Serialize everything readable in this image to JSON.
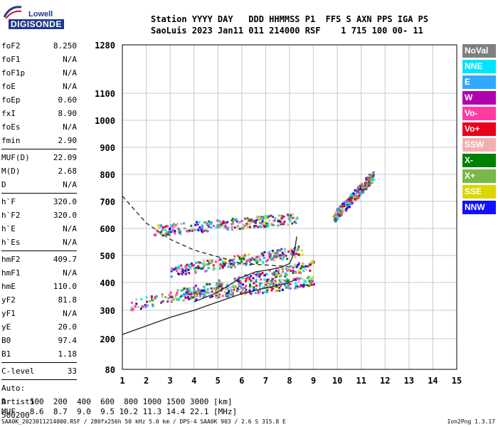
{
  "logo": {
    "line1": "Lowell",
    "line2": "DIGISONDE"
  },
  "header": {
    "line1": "Station YYYY DAY   DDD HHMMSS P1  FFS S AXN PPS IGA PS",
    "line2": "SaoLuis 2023 Jan11 011 214000 RSF    1 715 100 00- 11"
  },
  "params": {
    "group1": [
      {
        "label": "foF2",
        "value": "8.250"
      },
      {
        "label": "foF1",
        "value": "N/A"
      },
      {
        "label": "foF1p",
        "value": "N/A"
      },
      {
        "label": "foE",
        "value": "N/A"
      },
      {
        "label": "foEp",
        "value": "0.60"
      },
      {
        "label": "fxI",
        "value": "8.90"
      },
      {
        "label": "foEs",
        "value": "N/A"
      },
      {
        "label": "fmin",
        "value": "2.90"
      }
    ],
    "group2": [
      {
        "label": "MUF(D)",
        "value": "22.09"
      },
      {
        "label": "M(D)",
        "value": "2.68"
      },
      {
        "label": "D",
        "value": "N/A"
      }
    ],
    "group3": [
      {
        "label": "h`F",
        "value": "320.0"
      },
      {
        "label": "h`F2",
        "value": "320.0"
      },
      {
        "label": "h`E",
        "value": "N/A"
      },
      {
        "label": "h`Es",
        "value": "N/A"
      }
    ],
    "group4": [
      {
        "label": "hmF2",
        "value": "409.7"
      },
      {
        "label": "hmF1",
        "value": "N/A"
      },
      {
        "label": "hmE",
        "value": "110.0"
      },
      {
        "label": "yF2",
        "value": "81.8"
      },
      {
        "label": "yF1",
        "value": "N/A"
      },
      {
        "label": "yE",
        "value": "20.0"
      },
      {
        "label": "B0",
        "value": "97.4"
      },
      {
        "label": "B1",
        "value": "1.18"
      }
    ],
    "group5": [
      {
        "label": "C-level",
        "value": "33"
      }
    ],
    "auto": [
      "Auto:",
      "Artist5",
      "500200"
    ]
  },
  "legend": [
    {
      "label": "NoVal",
      "bg": "#808080",
      "fg": "#ffffff"
    },
    {
      "label": "NNE",
      "bg": "#00e5ff",
      "fg": "#ffffff"
    },
    {
      "label": "E",
      "bg": "#33a8ff",
      "fg": "#ffffff"
    },
    {
      "label": "W",
      "bg": "#b000b0",
      "fg": "#ffffff"
    },
    {
      "label": "Vo-",
      "bg": "#ff3ba0",
      "fg": "#ffffff"
    },
    {
      "label": "Vo+",
      "bg": "#e8001c",
      "fg": "#ffffff"
    },
    {
      "label": "SSW",
      "bg": "#f4b0b0",
      "fg": "#ffffff"
    },
    {
      "label": "X-",
      "bg": "#008000",
      "fg": "#ffffff"
    },
    {
      "label": "X+",
      "bg": "#78b848",
      "fg": "#ffffff"
    },
    {
      "label": "SSE",
      "bg": "#d8d800",
      "fg": "#ffffff"
    },
    {
      "label": "NNW",
      "bg": "#1010ff",
      "fg": "#ffffff"
    }
  ],
  "footer": {
    "d_row": "D     100  200  400  600  800 1000 1500 3000 [km]",
    "muf_row": "MUF   8.6  8.7  9.0  9.5 10.2 11.3 14.4 22.1 [MHz]",
    "file_line": "SAA0K_2023011214000.RSF / 280fx256h 50 kHz 5.0 km / DPS-4 SAA0K 903 / 2.6 S 315.8 E",
    "version": "Ion2Png 1.3.17"
  },
  "chart_data": {
    "type": "scatter",
    "title": "",
    "xlabel": "",
    "ylabel": "",
    "xlim": [
      1,
      15
    ],
    "ylim": [
      80,
      1280
    ],
    "x_ticks": [
      1,
      2,
      3,
      4,
      5,
      6,
      7,
      8,
      9,
      10,
      11,
      12,
      13,
      14,
      15
    ],
    "y_ticks": [
      80,
      200,
      300,
      400,
      500,
      600,
      700,
      800,
      900,
      1000,
      1100,
      1280
    ],
    "y_scale": "reciprocal-like (virtual height ionogram scale)",
    "grid": true,
    "colors": [
      "#00e5ff",
      "#33a8ff",
      "#b000b0",
      "#ff3ba0",
      "#e8001c",
      "#f4b0b0",
      "#008000",
      "#78b848",
      "#d8d800",
      "#1010ff",
      "#808080"
    ],
    "echo_traces": [
      {
        "name": "o-F trace 1",
        "x_range": [
          1.3,
          9.0
        ],
        "y_start": 320,
        "y_end": 470
      },
      {
        "name": "o-F trace 2",
        "x_range": [
          3.0,
          8.5
        ],
        "y_start": 445,
        "y_end": 520
      },
      {
        "name": "o-F second hop",
        "x_range": [
          2.3,
          8.3
        ],
        "y_start": 595,
        "y_end": 640
      },
      {
        "name": "x-F trace",
        "x_range": [
          3.5,
          9.0
        ],
        "y_start": 350,
        "y_end": 410
      },
      {
        "name": "oblique cluster",
        "x_range": [
          9.8,
          11.5
        ],
        "y_start": 640,
        "y_end": 800
      }
    ],
    "profile_curves": [
      {
        "name": "solid profile",
        "points": [
          [
            1.0,
            215
          ],
          [
            2.0,
            245
          ],
          [
            3.0,
            275
          ],
          [
            4.0,
            300
          ],
          [
            5.0,
            330
          ],
          [
            6.0,
            360
          ],
          [
            7.0,
            380
          ],
          [
            7.8,
            395
          ],
          [
            8.25,
            410
          ]
        ]
      },
      {
        "name": "solid trace fit",
        "points": [
          [
            4.0,
            330
          ],
          [
            5.0,
            365
          ],
          [
            6.0,
            420
          ],
          [
            6.6,
            440
          ],
          [
            7.0,
            445
          ],
          [
            7.6,
            455
          ],
          [
            8.0,
            470
          ],
          [
            8.2,
            510
          ],
          [
            8.3,
            570
          ]
        ]
      },
      {
        "name": "dashed MUF",
        "points": [
          [
            1.0,
            720
          ],
          [
            2.0,
            620
          ],
          [
            3.0,
            560
          ],
          [
            4.0,
            520
          ],
          [
            5.0,
            495
          ],
          [
            6.0,
            470
          ],
          [
            7.0,
            465
          ],
          [
            7.8,
            460
          ],
          [
            8.2,
            455
          ]
        ]
      }
    ]
  }
}
